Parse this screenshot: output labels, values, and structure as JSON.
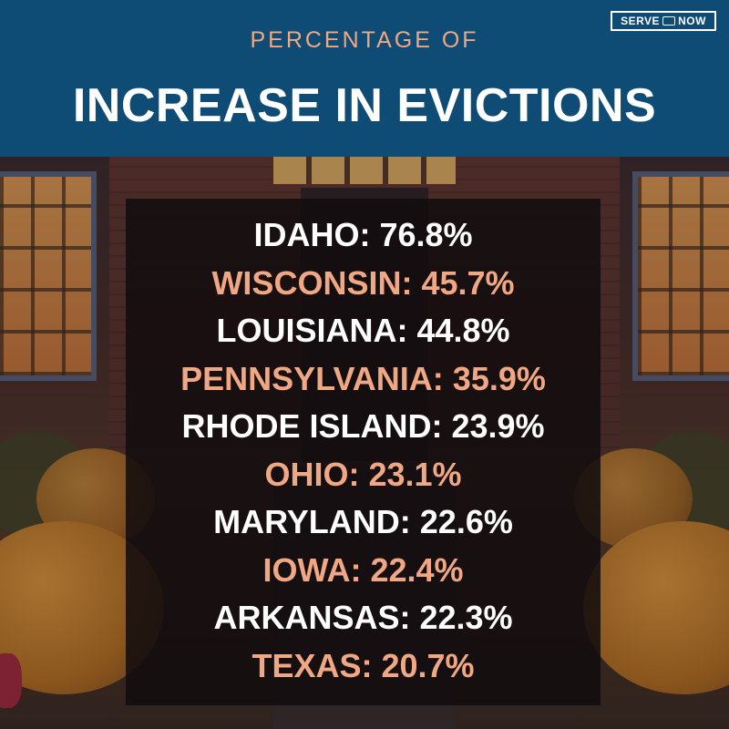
{
  "header": {
    "subtitle": "PERCENTAGE OF",
    "title": "INCREASE IN EVICTIONS",
    "logo_left": "SERVE",
    "logo_right": "NOW",
    "logo_icon": "megaphone-icon"
  },
  "colors": {
    "header_bg": "#0f4c75",
    "accent": "#f0a783",
    "text": "#ffffff"
  },
  "rows": [
    {
      "label": "IDAHO: 76.8%"
    },
    {
      "label": "WISCONSIN: 45.7%"
    },
    {
      "label": "LOUISIANA: 44.8%"
    },
    {
      "label": "PENNSYLVANIA: 35.9%"
    },
    {
      "label": "RHODE ISLAND: 23.9%"
    },
    {
      "label": "OHIO: 23.1%"
    },
    {
      "label": "MARYLAND: 22.6%"
    },
    {
      "label": "IOWA: 22.4%"
    },
    {
      "label": "ARKANSAS: 22.3%"
    },
    {
      "label": "TEXAS: 20.7%"
    }
  ]
}
